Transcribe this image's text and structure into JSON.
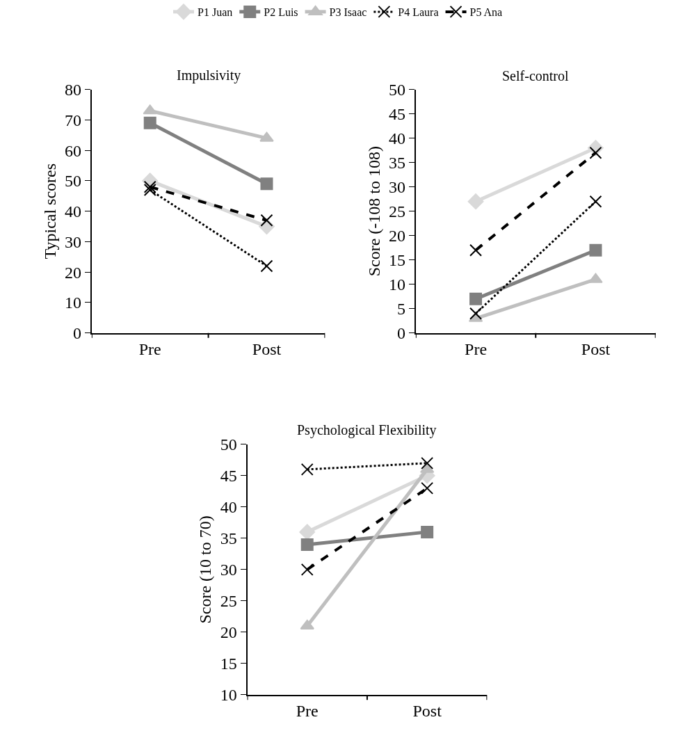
{
  "chart_data": [
    {
      "type": "line",
      "title": "Impulsivity",
      "ylabel": "Typical scores",
      "categories": [
        "Pre",
        "Post"
      ],
      "ylim": [
        0,
        80
      ],
      "yticks": [
        0,
        10,
        20,
        30,
        40,
        50,
        60,
        70,
        80
      ],
      "legend": "top",
      "series": [
        {
          "name": "P1 Juan",
          "color": "#d9d9d9",
          "marker": "diamond",
          "line_style": "solid",
          "values": [
            50,
            35
          ]
        },
        {
          "name": "P2 Luis",
          "color": "#808080",
          "marker": "square",
          "line_style": "solid",
          "values": [
            69,
            49
          ]
        },
        {
          "name": "P3 Isaac",
          "color": "#bfbfbf",
          "marker": "triangle",
          "line_style": "solid",
          "values": [
            73,
            64
          ]
        },
        {
          "name": "P4 Laura",
          "color": "#000000",
          "marker": "cross",
          "line_style": "dotted",
          "values": [
            47,
            22
          ]
        },
        {
          "name": "P5 Ana",
          "color": "#000000",
          "marker": "cross",
          "line_style": "dashed",
          "values": [
            48,
            37
          ]
        }
      ]
    },
    {
      "type": "line",
      "title": "Self-control",
      "ylabel": "Score (-108 to 108)",
      "categories": [
        "Pre",
        "Post"
      ],
      "ylim": [
        0,
        50
      ],
      "yticks": [
        0,
        5,
        10,
        15,
        20,
        25,
        30,
        35,
        40,
        45,
        50
      ],
      "series": [
        {
          "color": "#d9d9d9",
          "marker": "diamond",
          "line_style": "solid",
          "values": [
            27,
            38
          ]
        },
        {
          "color": "#808080",
          "marker": "square",
          "line_style": "solid",
          "values": [
            7,
            17
          ]
        },
        {
          "color": "#bfbfbf",
          "marker": "triangle",
          "line_style": "solid",
          "values": [
            3,
            11
          ]
        },
        {
          "color": "#000000",
          "marker": "cross",
          "line_style": "dotted",
          "values": [
            4,
            27
          ]
        },
        {
          "color": "#000000",
          "marker": "cross",
          "line_style": "dashed",
          "values": [
            17,
            37
          ]
        }
      ]
    },
    {
      "type": "line",
      "title": "Psychological Flexibility",
      "ylabel": "Score (10 to 70)",
      "categories": [
        "Pre",
        "Post"
      ],
      "ylim": [
        10,
        50
      ],
      "yticks": [
        10,
        15,
        20,
        25,
        30,
        35,
        40,
        45,
        50
      ],
      "series": [
        {
          "color": "#d9d9d9",
          "marker": "diamond",
          "line_style": "solid",
          "values": [
            36,
            45
          ]
        },
        {
          "color": "#808080",
          "marker": "square",
          "line_style": "solid",
          "values": [
            34,
            36
          ]
        },
        {
          "color": "#bfbfbf",
          "marker": "triangle",
          "line_style": "solid",
          "values": [
            21,
            46
          ]
        },
        {
          "color": "#000000",
          "marker": "cross",
          "line_style": "dotted",
          "values": [
            46,
            47
          ]
        },
        {
          "color": "#000000",
          "marker": "cross",
          "line_style": "dashed",
          "values": [
            30,
            43
          ]
        }
      ]
    }
  ]
}
